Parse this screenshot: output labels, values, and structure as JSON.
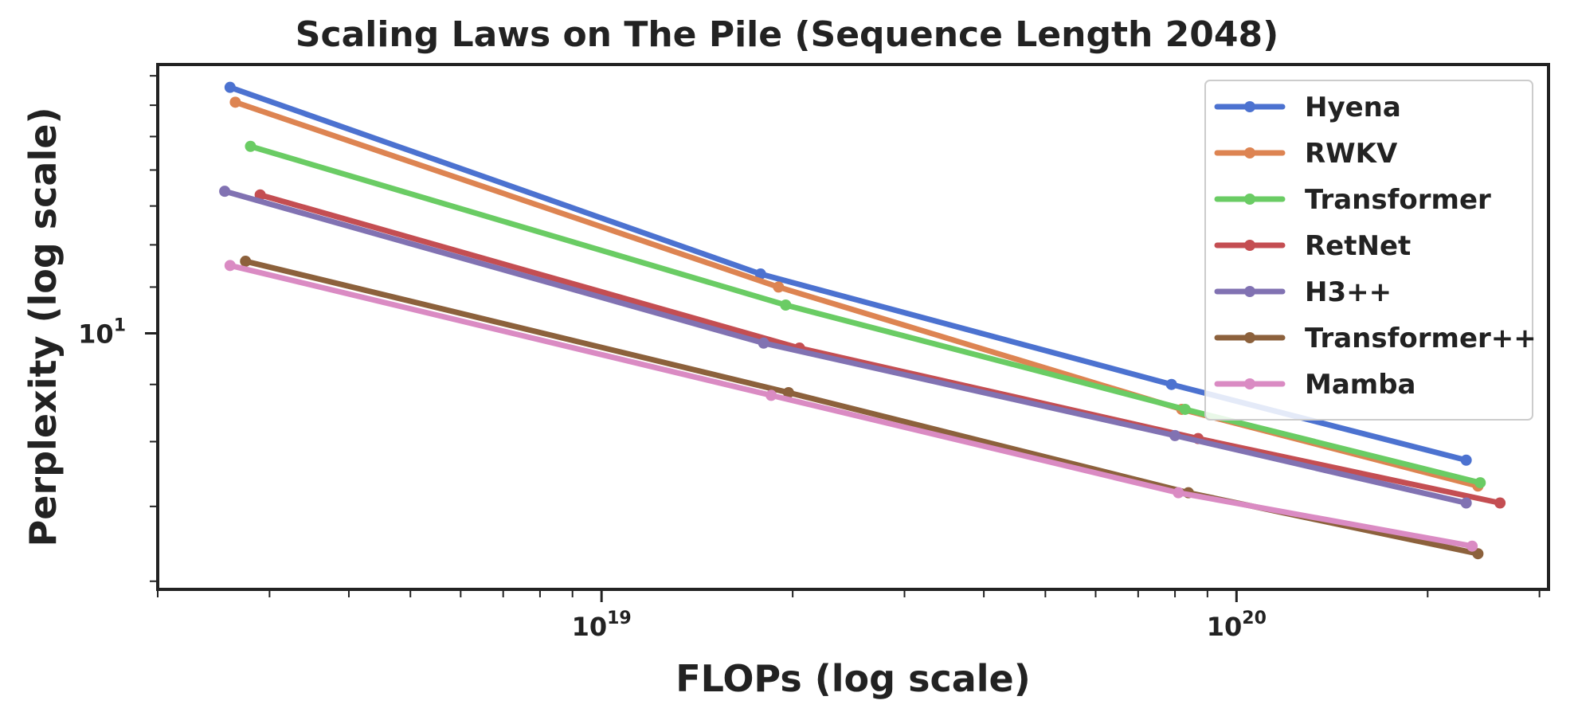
{
  "chart_data": {
    "type": "line",
    "title": "Scaling Laws on The Pile (Sequence Length 2048)",
    "xlabel": "FLOPs (log scale)",
    "ylabel": "Perplexity (log scale)",
    "xscale": "log",
    "yscale": "log",
    "xlim": [
      2e+18,
      3.1e+20
    ],
    "ylim": [
      5.9,
      17.4
    ],
    "x_ticks": [
      {
        "value": 1e+19,
        "base": "10",
        "exp": "19"
      },
      {
        "value": 1e+20,
        "base": "10",
        "exp": "20"
      }
    ],
    "y_ticks": [
      {
        "value": 10,
        "base": "10",
        "exp": "1"
      }
    ],
    "legend_position": "top-right",
    "series": [
      {
        "name": "Hyena",
        "color": "#4c72d0",
        "x": [
          2.6e+18,
          1.78e+19,
          7.9e+19,
          2.3e+20
        ],
        "y": [
          16.6,
          11.3,
          9.0,
          7.7
        ]
      },
      {
        "name": "RWKV",
        "color": "#dd8452",
        "x": [
          2.65e+18,
          1.9e+19,
          8.2e+19,
          2.4e+20
        ],
        "y": [
          16.1,
          11.0,
          8.55,
          7.3
        ]
      },
      {
        "name": "Transformer",
        "color": "#6acc64",
        "x": [
          2.8e+18,
          1.95e+19,
          8.3e+19,
          2.42e+20
        ],
        "y": [
          14.7,
          10.6,
          8.55,
          7.35
        ]
      },
      {
        "name": "RetNet",
        "color": "#c44e52",
        "x": [
          2.9e+18,
          2.05e+19,
          8.7e+19,
          2.6e+20
        ],
        "y": [
          13.3,
          9.7,
          8.05,
          7.05
        ]
      },
      {
        "name": "H3++",
        "color": "#8172b2",
        "x": [
          2.55e+18,
          1.8e+19,
          8e+19,
          2.3e+20
        ],
        "y": [
          13.4,
          9.8,
          8.1,
          7.05
        ]
      },
      {
        "name": "Transformer++",
        "color": "#8c613c",
        "x": [
          2.75e+18,
          1.97e+19,
          8.4e+19,
          2.4e+20
        ],
        "y": [
          11.6,
          8.85,
          7.2,
          6.35
        ]
      },
      {
        "name": "Mamba",
        "color": "#da8bc3",
        "x": [
          2.6e+18,
          1.85e+19,
          8.1e+19,
          2.35e+20
        ],
        "y": [
          11.5,
          8.8,
          7.2,
          6.45
        ]
      }
    ]
  }
}
